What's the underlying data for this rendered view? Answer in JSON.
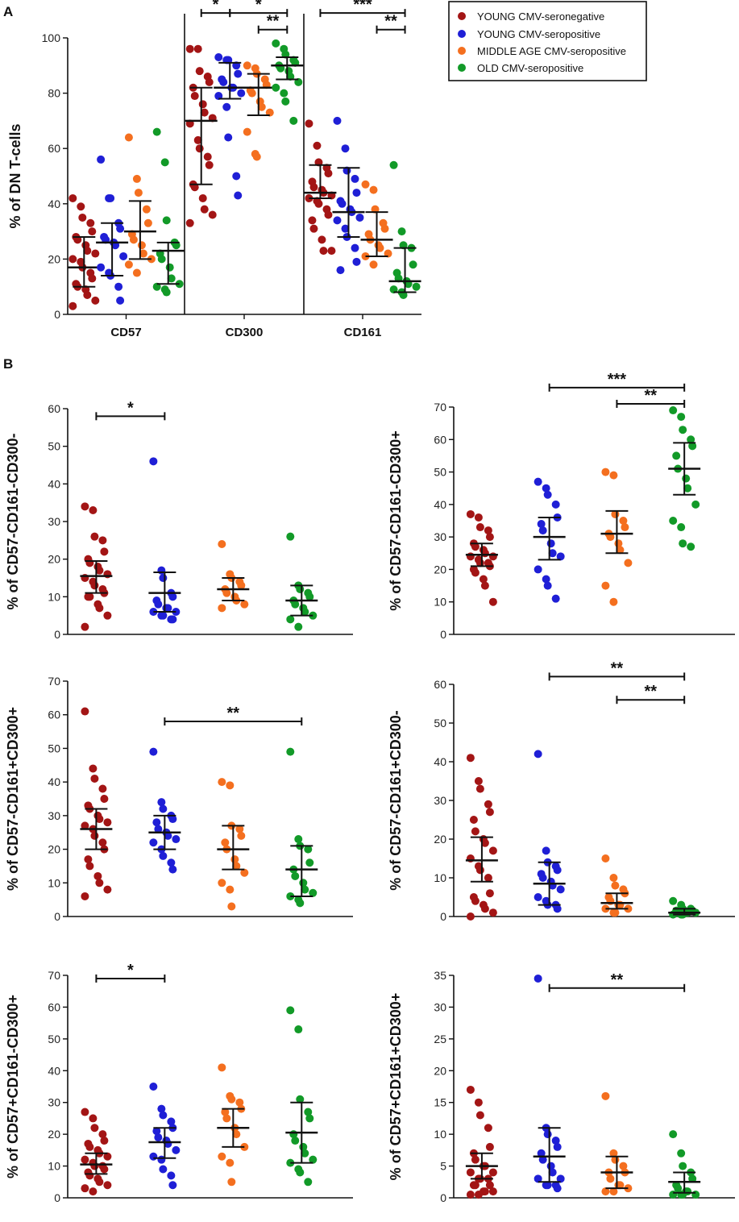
{
  "legend": {
    "groups": [
      {
        "label": "YOUNG CMV-seronegative",
        "color": "#a31515"
      },
      {
        "label": "YOUNG CMV-seropositive",
        "color": "#1f1fd6"
      },
      {
        "label": "MIDDLE AGE CMV-seropositive",
        "color": "#f46f1f"
      },
      {
        "label": "OLD CMV-seropositive",
        "color": "#129a28"
      }
    ]
  },
  "chart_data": [
    {
      "id": "A",
      "panel_label": "A",
      "type": "scatter",
      "ylabel": "% of DN T-cells",
      "ylim": [
        0,
        100
      ],
      "yticks": [
        0,
        20,
        40,
        60,
        80,
        100
      ],
      "categories": [
        "CD57",
        "CD300",
        "CD161"
      ],
      "series": [
        {
          "category": "CD57",
          "group": 0,
          "values": [
            42,
            39,
            35,
            33,
            30,
            28,
            27,
            25,
            23,
            22,
            20,
            19,
            17,
            15,
            13,
            11,
            10,
            9,
            7,
            5,
            3
          ],
          "median": 17,
          "q1": 10,
          "q3": 28
        },
        {
          "category": "CD57",
          "group": 1,
          "values": [
            56,
            42,
            42,
            33,
            31,
            28,
            27,
            26,
            25,
            21,
            17,
            15,
            14,
            10,
            5
          ],
          "median": 26,
          "q1": 14,
          "q3": 33
        },
        {
          "category": "CD57",
          "group": 2,
          "values": [
            64,
            49,
            44,
            38,
            33,
            29,
            27,
            25,
            22,
            20,
            18,
            15
          ],
          "median": 30,
          "q1": 20,
          "q3": 41
        },
        {
          "category": "CD57",
          "group": 3,
          "values": [
            66,
            55,
            34,
            26,
            25,
            22,
            20,
            17,
            13,
            11,
            10,
            9,
            8
          ],
          "median": 23,
          "q1": 11,
          "q3": 26
        },
        {
          "category": "CD300",
          "group": 0,
          "values": [
            96,
            96,
            88,
            86,
            84,
            82,
            79,
            76,
            73,
            71,
            69,
            63,
            60,
            57,
            54,
            47,
            46,
            42,
            38,
            36,
            33
          ],
          "median": 70,
          "q1": 47,
          "q3": 82
        },
        {
          "category": "CD300",
          "group": 1,
          "values": [
            93,
            92,
            92,
            90,
            87,
            85,
            84,
            82,
            82,
            80,
            79,
            75,
            64,
            50,
            43
          ],
          "median": 82,
          "q1": 78,
          "q3": 91
        },
        {
          "category": "CD300",
          "group": 2,
          "values": [
            90,
            89,
            87,
            85,
            83,
            81,
            80,
            77,
            75,
            73,
            66,
            58,
            57
          ],
          "median": 82,
          "q1": 72,
          "q3": 87
        },
        {
          "category": "CD300",
          "group": 3,
          "values": [
            98,
            96,
            94,
            92,
            91,
            90,
            89,
            88,
            86,
            84,
            82,
            80,
            77,
            70
          ],
          "median": 90,
          "q1": 85,
          "q3": 93
        },
        {
          "category": "CD161",
          "group": 0,
          "values": [
            69,
            61,
            55,
            53,
            51,
            48,
            46,
            45,
            44,
            43,
            42,
            41,
            40,
            38,
            36,
            34,
            31,
            27,
            23,
            23
          ],
          "median": 44,
          "q1": 42,
          "q3": 54
        },
        {
          "category": "CD161",
          "group": 1,
          "values": [
            70,
            60,
            52,
            49,
            44,
            41,
            40,
            38,
            37,
            35,
            34,
            31,
            28,
            24,
            19,
            16
          ],
          "median": 37,
          "q1": 28,
          "q3": 53
        },
        {
          "category": "CD161",
          "group": 2,
          "values": [
            47,
            45,
            38,
            33,
            31,
            29,
            27,
            25,
            24,
            22,
            21,
            18
          ],
          "median": 27,
          "q1": 21,
          "q3": 37
        },
        {
          "category": "CD161",
          "group": 3,
          "values": [
            54,
            30,
            25,
            24,
            18,
            15,
            13,
            12,
            11,
            10,
            9,
            8,
            7
          ],
          "median": 12,
          "q1": 8,
          "q3": 24
        }
      ],
      "sig": [
        {
          "category": "CD300",
          "from": 0,
          "to": 1,
          "label": "*",
          "y": 109
        },
        {
          "category": "CD300",
          "from": 1,
          "to": 3,
          "label": "*",
          "y": 109
        },
        {
          "category": "CD300",
          "from": 2,
          "to": 3,
          "label": "**",
          "y": 103
        },
        {
          "category": "CD161",
          "from": 0,
          "to": 3,
          "label": "***",
          "y": 109
        },
        {
          "category": "CD161",
          "from": 2,
          "to": 3,
          "label": "**",
          "y": 103
        }
      ]
    },
    {
      "id": "B1",
      "panel_label": "B",
      "type": "scatter",
      "ylabel": "% of CD57-CD161-CD300-",
      "ylim": [
        0,
        60
      ],
      "yticks": [
        0,
        10,
        20,
        30,
        40,
        50,
        60
      ],
      "series": [
        {
          "group": 0,
          "values": [
            34,
            33,
            26,
            25,
            22,
            20,
            19,
            18,
            17,
            16,
            15,
            14,
            13,
            12,
            11,
            10,
            10,
            8,
            7,
            5,
            2
          ],
          "median": 15.5,
          "q1": 11,
          "q3": 19.5
        },
        {
          "group": 1,
          "values": [
            46,
            17,
            15,
            11,
            10,
            9,
            8,
            7,
            7,
            6,
            6,
            5,
            5,
            4,
            4
          ],
          "median": 11,
          "q1": 6,
          "q3": 16.5
        },
        {
          "group": 2,
          "values": [
            24,
            16,
            15,
            14,
            13,
            12,
            11,
            10,
            9,
            8,
            7
          ],
          "median": 12,
          "q1": 9,
          "q3": 15
        },
        {
          "group": 3,
          "values": [
            26,
            13,
            12,
            11,
            10,
            9,
            8,
            7,
            6,
            5,
            4,
            2
          ],
          "median": 9,
          "q1": 5,
          "q3": 13
        }
      ],
      "sig": [
        {
          "from": 0,
          "to": 1,
          "label": "*",
          "y": 58
        }
      ]
    },
    {
      "id": "B2",
      "panel_label": "",
      "type": "scatter",
      "ylabel": "% of CD57-CD161-CD300+",
      "ylim": [
        0,
        70
      ],
      "yticks": [
        0,
        10,
        20,
        30,
        40,
        50,
        60,
        70
      ],
      "series": [
        {
          "group": 0,
          "values": [
            37,
            36,
            33,
            32,
            30,
            28,
            27,
            26,
            25,
            24,
            24,
            23,
            22,
            22,
            21,
            20,
            19,
            17,
            15,
            10
          ],
          "median": 24.5,
          "q1": 21,
          "q3": 28
        },
        {
          "group": 1,
          "values": [
            47,
            45,
            43,
            40,
            36,
            34,
            32,
            28,
            25,
            24,
            20,
            17,
            15,
            11
          ],
          "median": 30,
          "q1": 23,
          "q3": 36
        },
        {
          "group": 2,
          "values": [
            50,
            49,
            37,
            35,
            33,
            31,
            30,
            28,
            26,
            22,
            15,
            10
          ],
          "median": 31,
          "q1": 25,
          "q3": 38
        },
        {
          "group": 3,
          "values": [
            69,
            67,
            63,
            60,
            58,
            55,
            51,
            48,
            45,
            40,
            35,
            33,
            28,
            27
          ],
          "median": 51,
          "q1": 43,
          "q3": 59
        }
      ],
      "sig": [
        {
          "from": 1,
          "to": 3,
          "label": "***",
          "y": 76
        },
        {
          "from": 2,
          "to": 3,
          "label": "**",
          "y": 71
        }
      ]
    },
    {
      "id": "B3",
      "panel_label": "",
      "type": "scatter",
      "ylabel": "% of CD57-CD161+CD300+",
      "ylim": [
        0,
        70
      ],
      "yticks": [
        0,
        10,
        20,
        30,
        40,
        50,
        60,
        70
      ],
      "series": [
        {
          "group": 0,
          "values": [
            61,
            44,
            41,
            38,
            35,
            33,
            32,
            30,
            29,
            28,
            27,
            26,
            24,
            22,
            20,
            17,
            15,
            12,
            10,
            8,
            6
          ],
          "median": 26,
          "q1": 20,
          "q3": 32
        },
        {
          "group": 1,
          "values": [
            49,
            34,
            32,
            30,
            29,
            28,
            26,
            25,
            24,
            23,
            22,
            20,
            18,
            16,
            14
          ],
          "median": 25,
          "q1": 20,
          "q3": 30
        },
        {
          "group": 2,
          "values": [
            40,
            39,
            27,
            26,
            24,
            22,
            20,
            17,
            15,
            13,
            10,
            8,
            3
          ],
          "median": 20,
          "q1": 14,
          "q3": 27
        },
        {
          "group": 3,
          "values": [
            49,
            23,
            21,
            20,
            16,
            14,
            12,
            10,
            8,
            7,
            6,
            5,
            4
          ],
          "median": 14,
          "q1": 6,
          "q3": 21
        }
      ],
      "sig": [
        {
          "from": 1,
          "to": 3,
          "label": "**",
          "y": 58
        }
      ]
    },
    {
      "id": "B4",
      "panel_label": "",
      "type": "scatter",
      "ylabel": "% of CD57-CD161+CD300-",
      "ylim": [
        0,
        60
      ],
      "yticks": [
        0,
        10,
        20,
        30,
        40,
        50,
        60
      ],
      "series": [
        {
          "group": 0,
          "values": [
            41,
            35,
            33,
            29,
            27,
            25,
            22,
            20,
            19,
            17,
            15,
            13,
            12,
            10,
            6,
            5,
            4,
            3,
            2,
            1,
            0
          ],
          "median": 14.5,
          "q1": 9,
          "q3": 20.5
        },
        {
          "group": 1,
          "values": [
            42,
            17,
            14,
            13,
            12,
            11,
            10,
            9,
            8,
            7,
            5,
            4,
            3,
            3,
            2
          ],
          "median": 8.5,
          "q1": 3,
          "q3": 14
        },
        {
          "group": 2,
          "values": [
            15,
            10,
            8,
            7,
            6,
            5,
            4,
            3,
            3,
            2,
            2,
            1,
            1
          ],
          "median": 3.5,
          "q1": 2,
          "q3": 6
        },
        {
          "group": 3,
          "values": [
            4,
            3,
            2,
            2,
            1.5,
            1.5,
            1,
            1,
            1,
            1,
            0.5,
            0.5,
            0.5
          ],
          "median": 1,
          "q1": 0.5,
          "q3": 2
        }
      ],
      "sig": [
        {
          "from": 1,
          "to": 3,
          "label": "**",
          "y": 62
        },
        {
          "from": 2,
          "to": 3,
          "label": "**",
          "y": 56
        }
      ]
    },
    {
      "id": "B5",
      "panel_label": "",
      "type": "scatter",
      "ylabel": "% of CD57+CD161-CD300+",
      "ylim": [
        0,
        70
      ],
      "yticks": [
        0,
        10,
        20,
        30,
        40,
        50,
        60,
        70
      ],
      "series": [
        {
          "group": 0,
          "values": [
            27,
            25,
            22,
            20,
            18,
            17,
            16,
            15,
            14,
            13,
            12,
            11,
            10,
            10,
            9,
            8,
            7,
            6,
            5,
            4,
            3,
            2
          ],
          "median": 10.5,
          "q1": 7.5,
          "q3": 14
        },
        {
          "group": 1,
          "values": [
            35,
            28,
            26,
            24,
            22,
            21,
            19,
            18,
            17,
            15,
            13,
            12,
            9,
            7,
            4
          ],
          "median": 17.5,
          "q1": 12.5,
          "q3": 22
        },
        {
          "group": 2,
          "values": [
            41,
            32,
            31,
            30,
            28,
            27,
            25,
            22,
            20,
            16,
            13,
            11,
            5
          ],
          "median": 22,
          "q1": 16,
          "q3": 28
        },
        {
          "group": 3,
          "values": [
            59,
            53,
            31,
            27,
            25,
            20,
            18,
            16,
            14,
            12,
            11,
            9,
            8,
            5
          ],
          "median": 20.5,
          "q1": 11,
          "q3": 30
        }
      ],
      "sig": [
        {
          "from": 0,
          "to": 1,
          "label": "*",
          "y": 69
        }
      ]
    },
    {
      "id": "B6",
      "panel_label": "",
      "type": "scatter",
      "ylabel": "% of CD57+CD161+CD300+",
      "ylim": [
        0,
        35
      ],
      "yticks": [
        0,
        5,
        10,
        15,
        20,
        25,
        30,
        35
      ],
      "series": [
        {
          "group": 0,
          "values": [
            17,
            15,
            13,
            11,
            8,
            7,
            6,
            5,
            5,
            4,
            4,
            3,
            3,
            3,
            2,
            2,
            2,
            1,
            1,
            1,
            0.5,
            0.5
          ],
          "median": 5,
          "q1": 3,
          "q3": 7
        },
        {
          "group": 1,
          "values": [
            34.5,
            11,
            10,
            9,
            8,
            7,
            6,
            5,
            4,
            3,
            3,
            2,
            2,
            2,
            1.5
          ],
          "median": 6.5,
          "q1": 2.5,
          "q3": 11
        },
        {
          "group": 2,
          "values": [
            16,
            7,
            6,
            5,
            4,
            4,
            3,
            2,
            2,
            1.5,
            1,
            1
          ],
          "median": 4,
          "q1": 1.5,
          "q3": 6.5
        },
        {
          "group": 3,
          "values": [
            10,
            7,
            5,
            4,
            3,
            2,
            1.5,
            1,
            1,
            0.5,
            0.5,
            0.5,
            0.5
          ],
          "median": 2.5,
          "q1": 0.8,
          "q3": 4
        }
      ],
      "sig": [
        {
          "from": 1,
          "to": 3,
          "label": "**",
          "y": 33
        }
      ]
    }
  ]
}
